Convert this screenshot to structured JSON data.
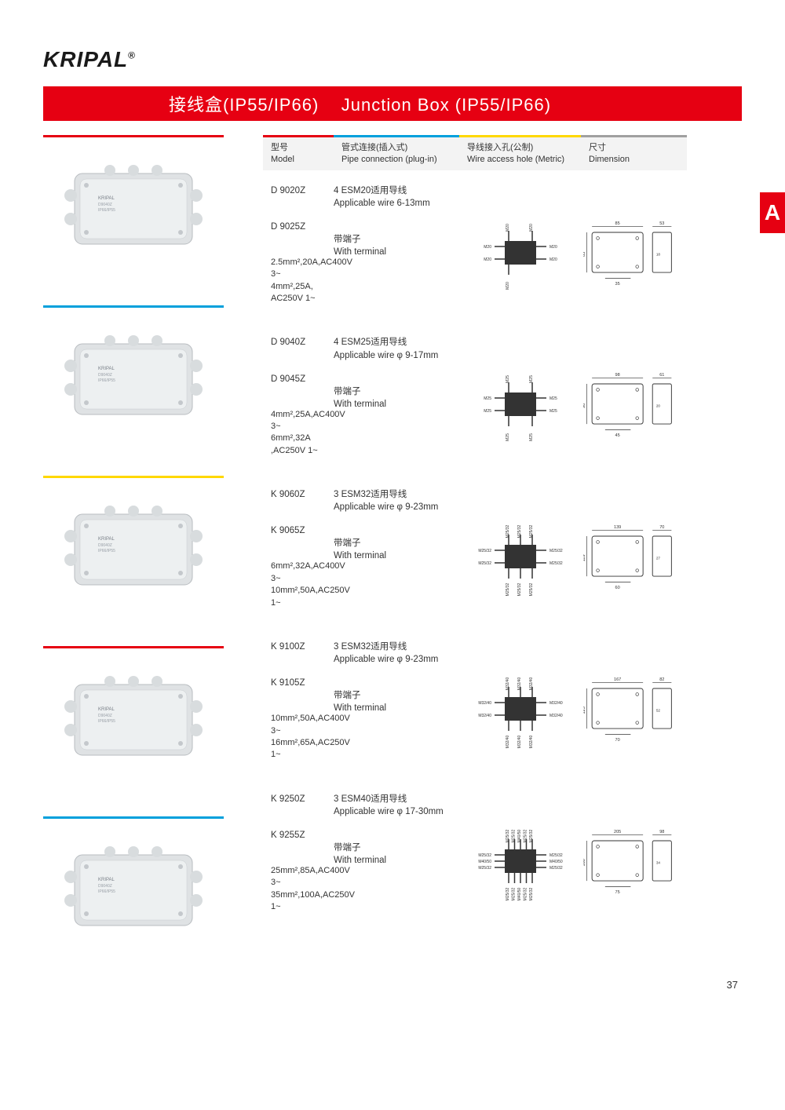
{
  "brand": "KRIPAL",
  "registered": "®",
  "title_cn": "接线盒(IP55/IP66)",
  "title_en": "Junction Box (IP55/IP66)",
  "side_tab": "A",
  "page_number": "37",
  "header": {
    "col1_cn": "型号",
    "col1_en": "Model",
    "col1_color": "#e60012",
    "col2_cn": "管式连接(插入式)",
    "col2_en": "Pipe connection (plug-in)",
    "col2_color": "#00a0dc",
    "col3_cn": "导线接入孔(公制)",
    "col3_en": "Wire access hole (Metric)",
    "col3_color": "#ffd800",
    "col4_cn": "尺寸",
    "col4_en": "Dimension",
    "col4_color": "#a0a0a0"
  },
  "products": [
    {
      "rule_color": "#e60012",
      "box_color": "#dfe2e4",
      "model_a": "D 9020Z",
      "pipe_a_cn": "4 ESM20适用导线",
      "pipe_a_en": "Applicable wire 6-13mm",
      "model_b": "D 9025Z",
      "pipe_b_cn": "带端子",
      "pipe_b_en": "With terminal",
      "spec1": "2.5mm²,20A,AC400V 3~",
      "spec2": "4mm²,25A, AC250V 1~",
      "wire_labels": {
        "top": [
          "M20",
          "M20"
        ],
        "left": [
          "M20",
          "M20"
        ],
        "right": [
          "M20",
          "M20"
        ],
        "bottom": [
          "M20"
        ]
      },
      "dim": {
        "w": "85",
        "h": "85",
        "d": "53",
        "inset_w": "35",
        "inset_h": "18"
      }
    },
    {
      "rule_color": "#00a0dc",
      "box_color": "#dfe2e4",
      "model_a": "D 9040Z",
      "pipe_a_cn": "4 ESM25适用导线",
      "pipe_a_en": "Applicable wire φ 9-17mm",
      "model_b": "D 9045Z",
      "pipe_b_cn": "带端子",
      "pipe_b_en": "With terminal",
      "spec1": "4mm²,25A,AC400V 3~",
      "spec2": "6mm²,32A ,AC250V 1~",
      "wire_labels": {
        "top": [
          "M25",
          "M25"
        ],
        "left": [
          "M25",
          "M25"
        ],
        "right": [
          "M25",
          "M25"
        ],
        "bottom": [
          "M25",
          "M25"
        ]
      },
      "dim": {
        "w": "98",
        "h": "98",
        "d": "61",
        "inset_w": "45",
        "inset_h": "20"
      }
    },
    {
      "rule_color": "#ffd800",
      "box_color": "#dfe2e4",
      "model_a": "K 9060Z",
      "pipe_a_cn": "3 ESM32适用导线",
      "pipe_a_en": "Applicable wire φ 9-23mm",
      "model_b": "K 9065Z",
      "pipe_b_cn": "带端子",
      "pipe_b_en": "With terminal",
      "spec1": "6mm²,32A,AC400V 3~",
      "spec2": "10mm²,50A,AC250V 1~",
      "wire_labels": {
        "top": [
          "M25/32",
          "M25/32",
          "M25/32"
        ],
        "left": [
          "M25/32",
          "M25/32"
        ],
        "right": [
          "M25/32",
          "M25/32"
        ],
        "bottom": [
          "M25/32",
          "M25/32",
          "M25/32"
        ]
      },
      "dim": {
        "w": "139",
        "h": "119",
        "d": "70",
        "inset_w": "60",
        "inset_h": "27"
      }
    },
    {
      "rule_color": "#e60012",
      "box_color": "#dfe2e4",
      "model_a": "K 9100Z",
      "pipe_a_cn": "3 ESM32适用导线",
      "pipe_a_en": "Applicable wire φ 9-23mm",
      "model_b": "K 9105Z",
      "pipe_b_cn": "带端子",
      "pipe_b_en": "With terminal",
      "spec1": "10mm²,50A,AC400V 3~",
      "spec2": "16mm²,65A,AC250V 1~",
      "wire_labels": {
        "top": [
          "M32/40",
          "M32/40",
          "M32/40"
        ],
        "left": [
          "M32/40",
          "M32/40"
        ],
        "right": [
          "M32/40",
          "M32/40"
        ],
        "bottom": [
          "M32/40",
          "M32/40",
          "M32/40"
        ]
      },
      "dim": {
        "w": "167",
        "h": "125",
        "d": "82",
        "inset_w": "70",
        "inset_h": "52"
      }
    },
    {
      "rule_color": "#00a0dc",
      "box_color": "#dfe2e4",
      "model_a": "K 9250Z",
      "pipe_a_cn": "3 ESM40适用导线",
      "pipe_a_en": "Applicable wire φ 17-30mm",
      "model_b": "K 9255Z",
      "pipe_b_cn": "带端子",
      "pipe_b_en": "With terminal",
      "spec1": "25mm²,85A,AC400V 3~",
      "spec2": "35mm²,100A,AC250V 1~",
      "wire_labels": {
        "top": [
          "M25/32",
          "M25/32",
          "M40/50",
          "M25/32",
          "M25/32"
        ],
        "left": [
          "M25/32",
          "M40/50",
          "M25/32"
        ],
        "right": [
          "M25/32",
          "M40/50",
          "M25/32"
        ],
        "bottom": [
          "M25/32",
          "M25/32",
          "M40/50",
          "M25/32",
          "M25/32"
        ]
      },
      "dim": {
        "w": "205",
        "h": "160",
        "d": "98",
        "inset_w": "75",
        "inset_h": "34"
      }
    }
  ]
}
